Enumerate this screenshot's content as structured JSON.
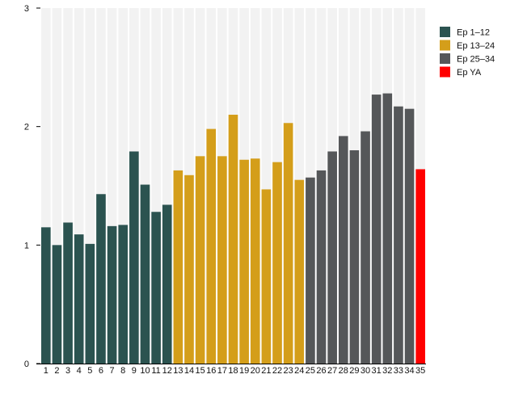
{
  "chart_data": {
    "type": "bar",
    "title": "",
    "xlabel": "",
    "ylabel": "",
    "ylim": [
      0,
      3
    ],
    "yticks": [
      0,
      1,
      2,
      3
    ],
    "grid": false,
    "legend_position": "top-right",
    "categories": [
      "1",
      "2",
      "3",
      "4",
      "5",
      "6",
      "7",
      "8",
      "9",
      "10",
      "11",
      "12",
      "13",
      "14",
      "15",
      "16",
      "17",
      "18",
      "19",
      "20",
      "21",
      "22",
      "23",
      "24",
      "25",
      "26",
      "27",
      "28",
      "29",
      "30",
      "31",
      "32",
      "33",
      "34",
      "35"
    ],
    "values": [
      1.15,
      1.0,
      1.19,
      1.09,
      1.01,
      1.43,
      1.16,
      1.17,
      1.79,
      1.51,
      1.28,
      1.34,
      1.63,
      1.59,
      1.75,
      1.98,
      1.75,
      2.1,
      1.72,
      1.73,
      1.47,
      1.7,
      2.03,
      1.55,
      1.57,
      1.63,
      1.79,
      1.92,
      1.8,
      1.96,
      2.27,
      2.28,
      2.17,
      2.15,
      1.64
    ],
    "groups": [
      {
        "name": "Ep 1–12",
        "color": "#2b5350",
        "from": 1,
        "to": 12
      },
      {
        "name": "Ep 13–24",
        "color": "#d49e1a",
        "from": 13,
        "to": 24
      },
      {
        "name": "Ep 25–34",
        "color": "#555759",
        "from": 25,
        "to": 34
      },
      {
        "name": "Ep YA",
        "color": "#ff0000",
        "from": 35,
        "to": 35
      }
    ],
    "band_background": "#f2f2f2"
  }
}
